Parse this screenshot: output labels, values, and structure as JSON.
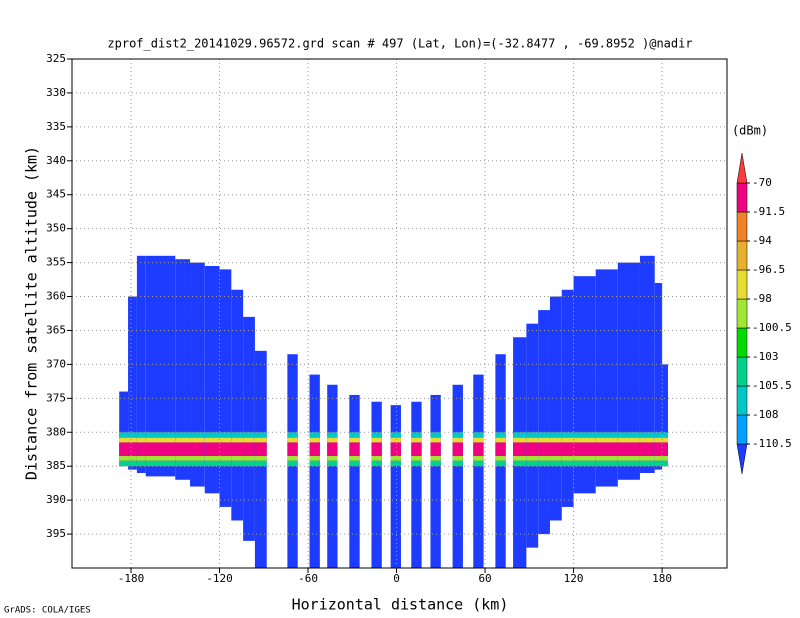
{
  "chart_data": {
    "type": "heatmap",
    "title": "zprof_dist2_20141029.96572.grd  scan # 497  (Lat, Lon)=(-32.8477 , -69.8952 )@nadir",
    "x_label": "Horizontal distance (km)",
    "y_label": "Distance from satellite altitude (km)",
    "footer": "GrADS: COLA/IGES",
    "colorbar_label": "(dBm)",
    "xlim": [
      -220,
      224
    ],
    "ylim": [
      325,
      400
    ],
    "y_reversed": true,
    "xticks": [
      -180,
      -120,
      -60,
      0,
      60,
      120,
      180
    ],
    "yticks": [
      325,
      330,
      335,
      340,
      345,
      350,
      355,
      360,
      365,
      370,
      375,
      380,
      385,
      390,
      395
    ],
    "grid": true,
    "levels": [
      -110.5,
      -108,
      -105.5,
      -103,
      -100.5,
      -98,
      -96.5,
      -94,
      -91.5,
      -70
    ],
    "colors": [
      "#1e3cff",
      "#00a0ff",
      "#00c8c8",
      "#00d28c",
      "#00dc00",
      "#a0e632",
      "#e6dc32",
      "#e6af2d",
      "#f08228",
      "#f00082",
      "#fa3c3c"
    ],
    "background": -115,
    "columns": [
      {
        "x0": -188,
        "x1": -182,
        "top": 374,
        "bottom": 385
      },
      {
        "x0": -182,
        "x1": -176,
        "top": 360,
        "bottom": 385.5
      },
      {
        "x0": -176,
        "x1": -170,
        "top": 354,
        "bottom": 386
      },
      {
        "x0": -170,
        "x1": -150,
        "top": 354,
        "bottom": 386.5
      },
      {
        "x0": -150,
        "x1": -140,
        "top": 354.5,
        "bottom": 387
      },
      {
        "x0": -140,
        "x1": -130,
        "top": 355,
        "bottom": 388
      },
      {
        "x0": -130,
        "x1": -120,
        "top": 355.5,
        "bottom": 389
      },
      {
        "x0": -120,
        "x1": -112,
        "top": 356,
        "bottom": 391
      },
      {
        "x0": -112,
        "x1": -104,
        "top": 359,
        "bottom": 393
      },
      {
        "x0": -104,
        "x1": -96,
        "top": 363,
        "bottom": 396
      },
      {
        "x0": -96,
        "x1": -88,
        "top": 368,
        "bottom": 400
      },
      {
        "x0": -74,
        "x1": -67,
        "top": 368.5,
        "bottom": 400
      },
      {
        "x0": -59,
        "x1": -52,
        "top": 371.5,
        "bottom": 400
      },
      {
        "x0": -47,
        "x1": -40,
        "top": 373,
        "bottom": 400
      },
      {
        "x0": -32,
        "x1": -25,
        "top": 374.5,
        "bottom": 400
      },
      {
        "x0": -17,
        "x1": -10,
        "top": 375.5,
        "bottom": 400
      },
      {
        "x0": -4,
        "x1": 3,
        "top": 376,
        "bottom": 400
      },
      {
        "x0": 10,
        "x1": 17,
        "top": 375.5,
        "bottom": 400
      },
      {
        "x0": 23,
        "x1": 30,
        "top": 374.5,
        "bottom": 400
      },
      {
        "x0": 38,
        "x1": 45,
        "top": 373,
        "bottom": 400
      },
      {
        "x0": 52,
        "x1": 59,
        "top": 371.5,
        "bottom": 400
      },
      {
        "x0": 67,
        "x1": 74,
        "top": 368.5,
        "bottom": 400
      },
      {
        "x0": 79,
        "x1": 88,
        "top": 366,
        "bottom": 400
      },
      {
        "x0": 88,
        "x1": 96,
        "top": 364,
        "bottom": 397
      },
      {
        "x0": 96,
        "x1": 104,
        "top": 362,
        "bottom": 395
      },
      {
        "x0": 104,
        "x1": 112,
        "top": 360,
        "bottom": 393
      },
      {
        "x0": 112,
        "x1": 120,
        "top": 359,
        "bottom": 391
      },
      {
        "x0": 120,
        "x1": 135,
        "top": 357,
        "bottom": 389
      },
      {
        "x0": 135,
        "x1": 150,
        "top": 356,
        "bottom": 388
      },
      {
        "x0": 150,
        "x1": 165,
        "top": 355,
        "bottom": 387
      },
      {
        "x0": 165,
        "x1": 175,
        "top": 354,
        "bottom": 386
      },
      {
        "x0": 175,
        "x1": 180,
        "top": 358,
        "bottom": 385.5
      },
      {
        "x0": 180,
        "x1": 184,
        "top": 370,
        "bottom": 385
      }
    ],
    "band": [
      {
        "top": 380,
        "bottom": 380.8,
        "value": -107
      },
      {
        "top": 380.8,
        "bottom": 381.5,
        "value": -97
      },
      {
        "top": 381.5,
        "bottom": 383.5,
        "value": -85
      },
      {
        "top": 383.5,
        "bottom": 384.2,
        "value": -99
      },
      {
        "top": 384.2,
        "bottom": 385,
        "value": -104
      }
    ]
  }
}
